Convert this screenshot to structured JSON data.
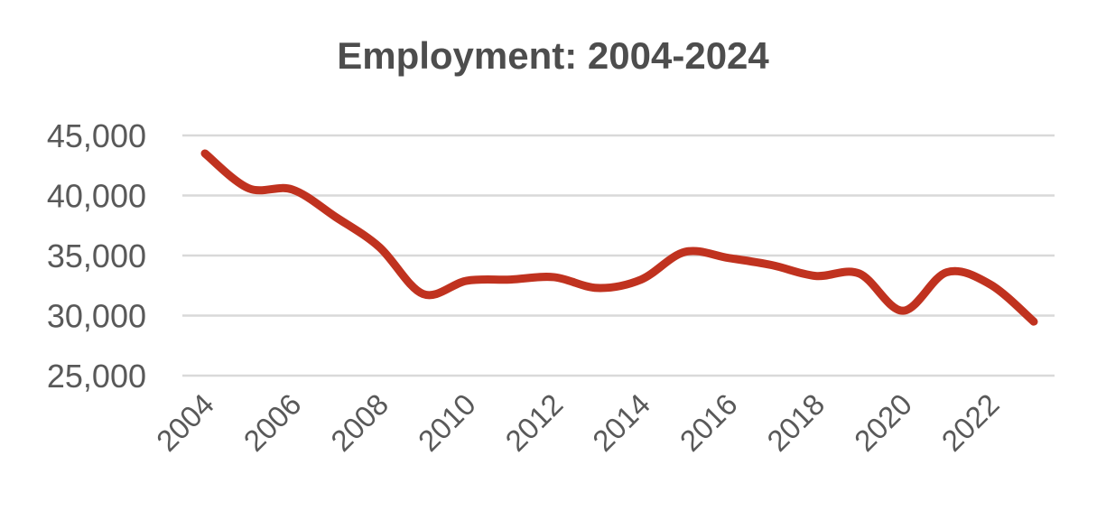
{
  "chart_data": {
    "type": "line",
    "title": "Employment: 2004-2024",
    "xlabel": "",
    "ylabel": "",
    "x": [
      2004,
      2005,
      2006,
      2007,
      2008,
      2009,
      2010,
      2011,
      2012,
      2013,
      2014,
      2015,
      2016,
      2017,
      2018,
      2019,
      2020,
      2021,
      2022,
      2023
    ],
    "series": [
      {
        "name": "",
        "color": "#c0321f",
        "values": [
          43500,
          40600,
          40500,
          38200,
          35700,
          31800,
          32900,
          33000,
          33200,
          32300,
          33000,
          35300,
          34800,
          34200,
          33300,
          33500,
          30400,
          33600,
          32600,
          29500
        ]
      }
    ],
    "ylim": [
      25000,
      45000
    ],
    "yticks": [
      "45,000",
      "40,000",
      "35,000",
      "30,000",
      "25,000"
    ],
    "ytick_values": [
      45000,
      40000,
      35000,
      30000,
      25000
    ],
    "xticks": [
      "2004",
      "2006",
      "2008",
      "2010",
      "2012",
      "2014",
      "2016",
      "2018",
      "2020",
      "2022"
    ],
    "xtick_values": [
      2004,
      2006,
      2008,
      2010,
      2012,
      2014,
      2016,
      2018,
      2020,
      2022
    ],
    "grid": "horizontal",
    "gridline_color": "#d9d9d9"
  }
}
